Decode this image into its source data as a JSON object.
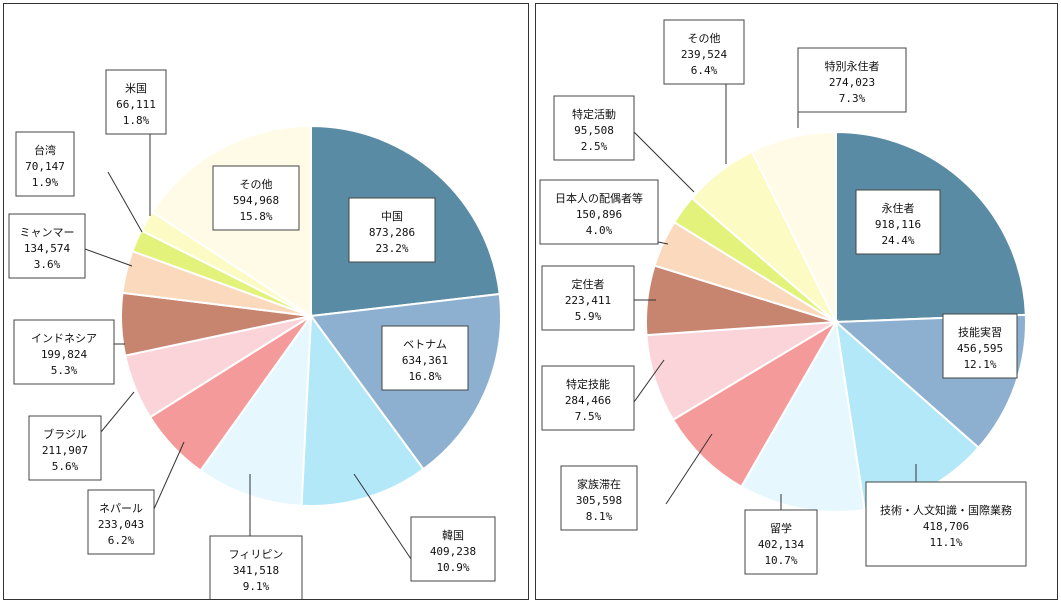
{
  "chart_data": [
    {
      "type": "pie",
      "title": "",
      "start_angle": 0,
      "direction": "clockwise",
      "slices": [
        {
          "label": "中国",
          "value": "873,286",
          "percent": "23.2%",
          "num": 23.2,
          "color": "#5a8ba5"
        },
        {
          "label": "ベトナム",
          "value": "634,361",
          "percent": "16.8%",
          "num": 16.8,
          "color": "#8eb0d0"
        },
        {
          "label": "韓国",
          "value": "409,238",
          "percent": "10.9%",
          "num": 10.9,
          "color": "#b3e8f9"
        },
        {
          "label": "フィリピン",
          "value": "341,518",
          "percent": "9.1%",
          "num": 9.1,
          "color": "#e6f8fd"
        },
        {
          "label": "ネパール",
          "value": "233,043",
          "percent": "6.2%",
          "num": 6.2,
          "color": "#f59a9a"
        },
        {
          "label": "ブラジル",
          "value": "211,907",
          "percent": "5.6%",
          "num": 5.6,
          "color": "#fbd4d9"
        },
        {
          "label": "インドネシア",
          "value": "199,824",
          "percent": "5.3%",
          "num": 5.3,
          "color": "#c7846f"
        },
        {
          "label": "ミャンマー",
          "value": "134,574",
          "percent": "3.6%",
          "num": 3.6,
          "color": "#fbd9bc"
        },
        {
          "label": "台湾",
          "value": "70,147",
          "percent": "1.9%",
          "num": 1.9,
          "color": "#e2f27a"
        },
        {
          "label": "米国",
          "value": "66,111",
          "percent": "1.8%",
          "num": 1.8,
          "color": "#fcfbc4"
        },
        {
          "label": "その他",
          "value": "594,968",
          "percent": "15.8%",
          "num": 15.8,
          "color": "#fffbe6"
        }
      ]
    },
    {
      "type": "pie",
      "title": "",
      "start_angle": 0,
      "direction": "clockwise",
      "slices": [
        {
          "label": "永住者",
          "value": "918,116",
          "percent": "24.4%",
          "num": 24.4,
          "color": "#5a8ba5"
        },
        {
          "label": "技能実習",
          "value": "456,595",
          "percent": "12.1%",
          "num": 12.1,
          "color": "#8eb0d0"
        },
        {
          "label": "技術・人文知識・国際業務",
          "value": "418,706",
          "percent": "11.1%",
          "num": 11.1,
          "color": "#b3e8f9"
        },
        {
          "label": "留学",
          "value": "402,134",
          "percent": "10.7%",
          "num": 10.7,
          "color": "#e6f8fd"
        },
        {
          "label": "家族滞在",
          "value": "305,598",
          "percent": "8.1%",
          "num": 8.1,
          "color": "#f59a9a"
        },
        {
          "label": "特定技能",
          "value": "284,466",
          "percent": "7.5%",
          "num": 7.5,
          "color": "#fbd4d9"
        },
        {
          "label": "定住者",
          "value": "223,411",
          "percent": "5.9%",
          "num": 5.9,
          "color": "#c7846f"
        },
        {
          "label": "日本人の配偶者等",
          "value": "150,896",
          "percent": "4.0%",
          "num": 4.0,
          "color": "#fbd9bc"
        },
        {
          "label": "特定活動",
          "value": "95,508",
          "percent": "2.5%",
          "num": 2.5,
          "color": "#e2f27a"
        },
        {
          "label": "その他",
          "value": "239,524",
          "percent": "6.4%",
          "num": 6.4,
          "color": "#fcfbc4"
        },
        {
          "label": "特別永住者",
          "value": "274,023",
          "percent": "7.3%",
          "num": 7.3,
          "color": "#fffbe6"
        }
      ]
    }
  ]
}
